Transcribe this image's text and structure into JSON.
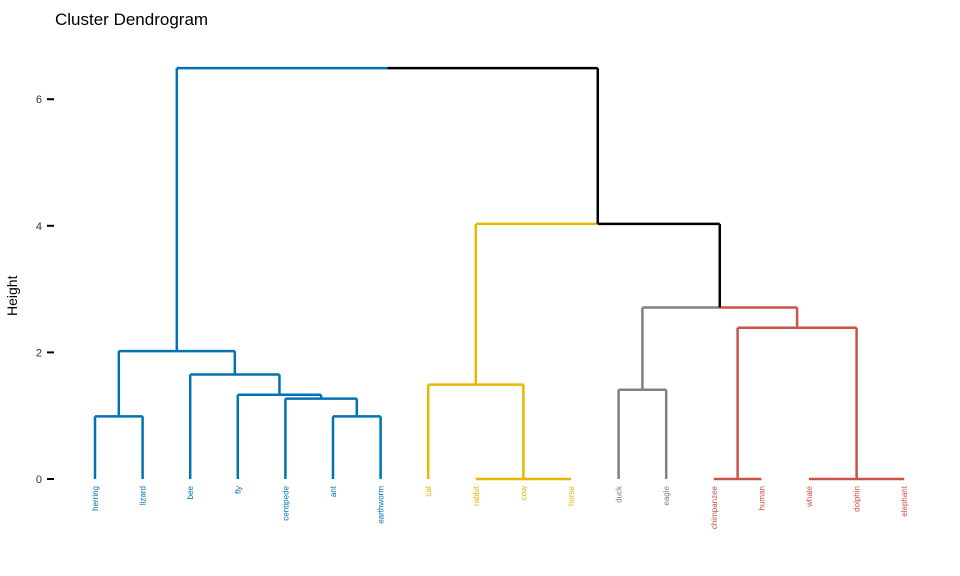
{
  "chart_data": {
    "type": "dendrogram",
    "title": "Cluster Dendrogram",
    "ylabel": "Height",
    "ylim": [
      0,
      6.5
    ],
    "yticks": [
      0,
      2,
      4,
      6
    ],
    "leaves": [
      "herring",
      "lizard",
      "bee",
      "fly",
      "centipede",
      "ant",
      "earthworm",
      "cat",
      "rabbit",
      "cow",
      "horse",
      "duck",
      "eagle",
      "chimpanzee",
      "human",
      "whale",
      "dolphin",
      "elephant"
    ],
    "clusters": [
      {
        "name": "blue",
        "color": "#0072B2",
        "leaves": [
          0,
          1,
          2,
          3,
          4,
          5,
          6
        ]
      },
      {
        "name": "yellow",
        "color": "#E6B800",
        "leaves": [
          7,
          8,
          9,
          10
        ]
      },
      {
        "name": "grey",
        "color": "#808080",
        "leaves": [
          11,
          12
        ]
      },
      {
        "name": "red",
        "color": "#C9524A",
        "leaves": [
          13,
          14,
          15,
          16,
          17
        ]
      }
    ],
    "merges": [
      {
        "id": "h-l",
        "left": "L0",
        "right": "L1",
        "height": 0.99,
        "color": "#0072B2"
      },
      {
        "id": "ant-ew",
        "left": "L5",
        "right": "L6",
        "height": 0.99,
        "color": "#0072B2"
      },
      {
        "id": "cen-aw",
        "left": "L4",
        "right": "ant-ew",
        "height": 1.27,
        "color": "#0072B2"
      },
      {
        "id": "fly-c",
        "left": "L3",
        "right": "cen-aw",
        "height": 1.33,
        "color": "#0072B2"
      },
      {
        "id": "bee-f",
        "left": "L2",
        "right": "fly-c",
        "height": 1.65,
        "color": "#0072B2"
      },
      {
        "id": "blue",
        "left": "h-l",
        "right": "bee-f",
        "height": 2.02,
        "color": "#0072B2"
      },
      {
        "id": "rab-cow-hor",
        "left": "L8",
        "right": "L9",
        "height": 0.0,
        "color": "#E6B800",
        "extra": [
          "L10"
        ]
      },
      {
        "id": "yel",
        "left": "L7",
        "right": "rab-cow-hor",
        "height": 1.49,
        "color": "#E6B800"
      },
      {
        "id": "grey",
        "left": "L11",
        "right": "L12",
        "height": 1.41,
        "color": "#808080"
      },
      {
        "id": "ch-hu",
        "left": "L13",
        "right": "L14",
        "height": 0.0,
        "color": "#C9524A"
      },
      {
        "id": "wh-do-el",
        "left": "L15",
        "right": "L16",
        "height": 0.0,
        "color": "#C9524A",
        "extra": [
          "L17"
        ]
      },
      {
        "id": "red",
        "left": "ch-hu",
        "right": "wh-do-el",
        "height": 2.39,
        "color": "#C9524A"
      },
      {
        "id": "grey-red",
        "left": "grey",
        "right": "red",
        "height": 2.71,
        "color": "#808080",
        "right_color": "#C9524A"
      },
      {
        "id": "yel-gr",
        "left": "yel",
        "right": "grey-red",
        "height": 4.03,
        "color": "#E6B800",
        "right_color": "#000000"
      },
      {
        "id": "root",
        "left": "blue",
        "right": "yel-gr",
        "height": 6.49,
        "color": "#0072B2",
        "right_color": "#000000"
      }
    ]
  }
}
